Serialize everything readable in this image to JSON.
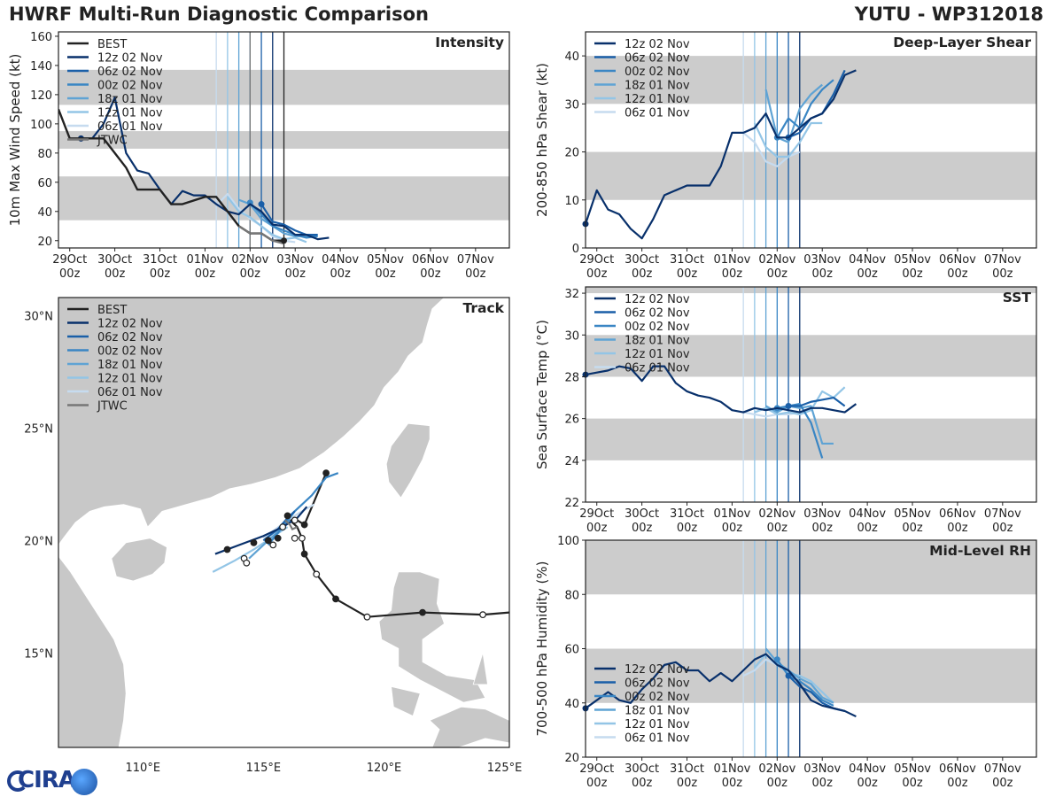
{
  "header": {
    "title": "HWRF Multi-Run Diagnostic Comparison",
    "storm": "YUTU - WP312018"
  },
  "logo": {
    "text": "CIRA"
  },
  "colors": {
    "best": "#222222",
    "jtwc": "#777777",
    "runs": [
      "#08306b",
      "#1a5fa8",
      "#3a86c4",
      "#5fa3d4",
      "#93c5e6",
      "#c6dbef"
    ],
    "band": "#cccccc",
    "land": "#c8c8c8"
  },
  "time_axis": {
    "ticks": [
      {
        "day": "29Oct",
        "hour": "00z"
      },
      {
        "day": "30Oct",
        "hour": "00z"
      },
      {
        "day": "31Oct",
        "hour": "00z"
      },
      {
        "day": "01Nov",
        "hour": "00z"
      },
      {
        "day": "02Nov",
        "hour": "00z"
      },
      {
        "day": "03Nov",
        "hour": "00z"
      },
      {
        "day": "04Nov",
        "hour": "00z"
      },
      {
        "day": "05Nov",
        "hour": "00z"
      },
      {
        "day": "06Nov",
        "hour": "00z"
      },
      {
        "day": "07Nov",
        "hour": "00z"
      }
    ],
    "init_day_offsets": [
      4.5,
      4.25,
      4.0,
      3.75,
      3.5,
      3.25
    ]
  },
  "legend_labels": {
    "best": "BEST",
    "jtwc": "JTWC",
    "runs": [
      "12z 02 Nov",
      "06z 02 Nov",
      "00z 02 Nov",
      "18z 01 Nov",
      "12z 01 Nov",
      "06z 01 Nov"
    ]
  },
  "chart_data": [
    {
      "id": "intensity",
      "type": "line",
      "title": "Intensity",
      "ylabel": "10m Max Wind Speed (kt)",
      "ylim": [
        15,
        163
      ],
      "yticks": [
        20,
        40,
        60,
        80,
        100,
        120,
        140,
        160
      ],
      "bands": [
        [
          34,
          64
        ],
        [
          83,
          95
        ],
        [
          113,
          137
        ]
      ],
      "xlim": [
        -0.25,
        9.75
      ],
      "best": {
        "x": [
          -0.25,
          0,
          0.25,
          0.5,
          0.75,
          1,
          1.25,
          1.5,
          2,
          2.25,
          2.5,
          3,
          3.25,
          3.5,
          3.75,
          4,
          4.25,
          4.5,
          4.75
        ],
        "y": [
          110,
          90,
          90,
          90,
          90,
          80,
          70,
          55,
          55,
          45,
          45,
          50,
          50,
          40,
          30,
          25,
          25,
          20,
          20
        ]
      },
      "jtwc": {
        "x": [
          3.75,
          4,
          4.25,
          4.5,
          4.75
        ],
        "y": [
          30,
          25,
          25,
          20,
          18
        ]
      },
      "runs": [
        {
          "x": [
            0.25,
            0.5,
            0.75,
            1,
            1.25,
            1.5,
            1.75,
            2,
            2.25,
            2.5,
            2.75,
            3,
            3.25,
            3.5,
            3.75,
            4,
            4.25,
            4.5,
            4.75,
            5,
            5.25,
            5.5,
            5.75
          ],
          "y": [
            90,
            90,
            100,
            118,
            80,
            68,
            66,
            55,
            45,
            54,
            51,
            51,
            45,
            40,
            38,
            45,
            40,
            31,
            30,
            24,
            24,
            21,
            22
          ]
        },
        {
          "x": [
            4.25,
            4.5,
            4.75,
            5,
            5.25,
            5.5
          ],
          "y": [
            45,
            33,
            31,
            27,
            24,
            24
          ]
        },
        {
          "x": [
            4.0,
            4.25,
            4.5,
            4.75,
            5,
            5.25,
            5.5
          ],
          "y": [
            46,
            38,
            30,
            27,
            24,
            22,
            23
          ]
        },
        {
          "x": [
            3.75,
            4,
            4.25,
            4.5,
            4.75,
            5,
            5.25,
            5.5
          ],
          "y": [
            48,
            45,
            35,
            30,
            25,
            23,
            23,
            24
          ]
        },
        {
          "x": [
            3.5,
            3.75,
            4,
            4.25,
            4.5,
            4.75,
            5,
            5.25
          ],
          "y": [
            50,
            40,
            36,
            30,
            24,
            21,
            22,
            19
          ]
        },
        {
          "x": [
            3.25,
            3.5,
            3.75,
            4,
            4.25,
            4.5,
            4.75,
            5
          ],
          "y": [
            44,
            52,
            42,
            35,
            30,
            23,
            20,
            19
          ]
        }
      ]
    },
    {
      "id": "shear",
      "type": "line",
      "title": "Deep-Layer Shear",
      "ylabel": "200-850 hPa Shear (kt)",
      "ylim": [
        0,
        45
      ],
      "yticks": [
        0,
        10,
        20,
        30,
        40
      ],
      "bands": [
        [
          10,
          20
        ],
        [
          30,
          40
        ]
      ],
      "xlim": [
        -0.25,
        9.75
      ],
      "runs": [
        {
          "x": [
            -0.25,
            0,
            0.25,
            0.5,
            0.75,
            1,
            1.25,
            1.5,
            1.75,
            2,
            2.25,
            2.5,
            2.75,
            3,
            3.25,
            3.5,
            3.75,
            4,
            4.25,
            4.5,
            4.75,
            5,
            5.25,
            5.5,
            5.75
          ],
          "y": [
            5,
            12,
            8,
            7,
            4,
            2,
            6,
            11,
            12,
            13,
            13,
            13,
            17,
            24,
            24,
            25,
            28,
            23,
            23,
            25,
            27,
            28,
            31,
            36,
            37
          ]
        },
        {
          "x": [
            4.25,
            4.5,
            4.75,
            5,
            5.25,
            5.5
          ],
          "y": [
            23,
            24,
            27,
            28,
            32,
            37
          ]
        },
        {
          "x": [
            4.0,
            4.25,
            4.5,
            4.75,
            5,
            5.25
          ],
          "y": [
            23,
            27,
            25,
            30,
            33,
            35
          ]
        },
        {
          "x": [
            3.75,
            4,
            4.25,
            4.5,
            4.75,
            5
          ],
          "y": [
            33,
            23,
            22,
            29,
            32,
            34
          ]
        },
        {
          "x": [
            3.5,
            3.75,
            4,
            4.25,
            4.5,
            4.75,
            5
          ],
          "y": [
            26,
            21,
            19,
            19,
            22,
            26,
            26
          ]
        },
        {
          "x": [
            3.25,
            3.5,
            3.75,
            4,
            4.25,
            4.5
          ],
          "y": [
            24,
            22,
            18,
            17,
            19,
            20
          ]
        }
      ]
    },
    {
      "id": "sst",
      "type": "line",
      "title": "SST",
      "ylabel": "Sea Surface Temp (°C)",
      "ylim": [
        22,
        32.3
      ],
      "yticks": [
        22,
        24,
        26,
        28,
        30,
        32
      ],
      "bands": [
        [
          24,
          26
        ],
        [
          28,
          30
        ],
        [
          32,
          32.3
        ]
      ],
      "xlim": [
        -0.25,
        9.75
      ],
      "runs": [
        {
          "x": [
            -0.25,
            0,
            0.25,
            0.5,
            0.75,
            1,
            1.25,
            1.5,
            1.75,
            2,
            2.25,
            2.5,
            2.75,
            3,
            3.25,
            3.5,
            3.75,
            4,
            4.25,
            4.5,
            4.75,
            5,
            5.25,
            5.5,
            5.75
          ],
          "y": [
            28.1,
            28.2,
            28.3,
            28.5,
            28.4,
            27.8,
            28.5,
            28.5,
            27.7,
            27.3,
            27.1,
            27.0,
            26.8,
            26.4,
            26.3,
            26.5,
            26.4,
            26.5,
            26.4,
            26.3,
            26.5,
            26.5,
            26.4,
            26.3,
            26.7
          ]
        },
        {
          "x": [
            4.25,
            4.5,
            4.75,
            5,
            5.25,
            5.5
          ],
          "y": [
            26.6,
            26.6,
            26.8,
            26.9,
            27.0,
            26.6
          ]
        },
        {
          "x": [
            4.0,
            4.25,
            4.5,
            4.75,
            5
          ],
          "y": [
            26.5,
            26.6,
            26.7,
            25.8,
            24.1
          ]
        },
        {
          "x": [
            3.75,
            4,
            4.25,
            4.5,
            4.75,
            5,
            5.25
          ],
          "y": [
            26.6,
            26.3,
            26.6,
            26.5,
            26.6,
            24.8,
            24.8
          ]
        },
        {
          "x": [
            3.5,
            3.75,
            4,
            4.25,
            4.5,
            4.75,
            5,
            5.25,
            5.5
          ],
          "y": [
            26.3,
            26.5,
            26.2,
            26.3,
            26.2,
            26.4,
            27.3,
            27.0,
            27.5
          ]
        },
        {
          "x": [
            3.25,
            3.5,
            3.75,
            4,
            4.25,
            4.5
          ],
          "y": [
            26.3,
            26.2,
            26.1,
            26.2,
            26.2,
            26.3
          ]
        }
      ]
    },
    {
      "id": "rh",
      "type": "line",
      "title": "Mid-Level RH",
      "ylabel": "700-500 hPa Humidity (%)",
      "ylim": [
        20,
        100
      ],
      "yticks": [
        20,
        40,
        60,
        80,
        100
      ],
      "bands": [
        [
          40,
          60
        ],
        [
          80,
          100
        ]
      ],
      "xlim": [
        -0.25,
        9.75
      ],
      "runs": [
        {
          "x": [
            -0.25,
            0,
            0.25,
            0.5,
            0.75,
            1,
            1.25,
            1.5,
            1.75,
            2,
            2.25,
            2.5,
            2.75,
            3,
            3.25,
            3.5,
            3.75,
            4,
            4.25,
            4.5,
            4.75,
            5,
            5.25,
            5.5,
            5.75
          ],
          "y": [
            38,
            41,
            44,
            41,
            40,
            45,
            49,
            54,
            55,
            52,
            52,
            48,
            51,
            48,
            52,
            56,
            58,
            54,
            52,
            47,
            41,
            39,
            38,
            37,
            35
          ]
        },
        {
          "x": [
            4.25,
            4.5,
            4.75,
            5,
            5.25,
            5.5
          ],
          "y": [
            50,
            46,
            44,
            40,
            38,
            37
          ]
        },
        {
          "x": [
            4.0,
            4.25,
            4.5,
            4.75,
            5,
            5.25
          ],
          "y": [
            56,
            50,
            48,
            45,
            41,
            39
          ]
        },
        {
          "x": [
            3.75,
            4,
            4.25,
            4.5,
            4.75,
            5,
            5.25
          ],
          "y": [
            60,
            55,
            52,
            49,
            47,
            42,
            40
          ]
        },
        {
          "x": [
            3.5,
            3.75,
            4,
            4.25,
            4.5,
            4.75,
            5,
            5.25
          ],
          "y": [
            53,
            58,
            54,
            51,
            50,
            48,
            44,
            40
          ]
        },
        {
          "x": [
            3.25,
            3.5,
            3.75,
            4,
            4.25,
            4.5
          ],
          "y": [
            50,
            52,
            56,
            54,
            51,
            49
          ]
        }
      ]
    },
    {
      "id": "track",
      "type": "scatter",
      "title": "Track",
      "xlim": [
        106.5,
        125.2
      ],
      "ylim": [
        10.8,
        30.8
      ],
      "xticks": [
        110,
        115,
        120,
        125
      ],
      "xtick_labels": [
        "110°E",
        "115°E",
        "120°E",
        "125°E"
      ],
      "yticks": [
        15,
        20,
        25,
        30
      ],
      "ytick_labels": [
        "15°N",
        "20°N",
        "25°N",
        "30°N"
      ],
      "best": {
        "lon": [
          125.2,
          124.1,
          121.6,
          119.3,
          118.0,
          117.2,
          116.7,
          116.6,
          116.4,
          116.2,
          116.0,
          116.1,
          116.7,
          117.6
        ],
        "lat": [
          16.8,
          16.7,
          16.8,
          16.6,
          17.4,
          18.5,
          19.4,
          20.1,
          20.6,
          20.8,
          21.1,
          21.1,
          20.7,
          23.0
        ]
      },
      "best_points": [
        {
          "lon": 124.1,
          "lat": 16.7,
          "filled": false
        },
        {
          "lon": 121.6,
          "lat": 16.8,
          "filled": true
        },
        {
          "lon": 119.3,
          "lat": 16.6,
          "filled": false
        },
        {
          "lon": 118.0,
          "lat": 17.4,
          "filled": true
        },
        {
          "lon": 117.2,
          "lat": 18.5,
          "filled": false
        },
        {
          "lon": 116.7,
          "lat": 19.4,
          "filled": true
        },
        {
          "lon": 116.6,
          "lat": 20.1,
          "filled": false
        },
        {
          "lon": 116.7,
          "lat": 20.7,
          "filled": true
        },
        {
          "lon": 116.0,
          "lat": 21.1,
          "filled": true
        },
        {
          "lon": 117.6,
          "lat": 23.0,
          "filled": true
        },
        {
          "lon": 115.6,
          "lat": 20.1,
          "filled": true
        },
        {
          "lon": 115.2,
          "lat": 20.0,
          "filled": true
        },
        {
          "lon": 114.6,
          "lat": 19.9,
          "filled": true
        },
        {
          "lon": 113.5,
          "lat": 19.6,
          "filled": true
        },
        {
          "lon": 114.2,
          "lat": 19.2,
          "filled": false
        },
        {
          "lon": 114.3,
          "lat": 19.0,
          "filled": false
        },
        {
          "lon": 115.4,
          "lat": 19.8,
          "filled": false
        },
        {
          "lon": 115.8,
          "lat": 20.6,
          "filled": false
        },
        {
          "lon": 116.3,
          "lat": 20.1,
          "filled": false
        },
        {
          "lon": 116.3,
          "lat": 20.9,
          "filled": false
        }
      ],
      "jtwc": {
        "lon": [
          116.4,
          116.2,
          116.1,
          115.9
        ],
        "lat": [
          20.6,
          20.5,
          20.7,
          20.9
        ]
      },
      "runs": [
        {
          "lon": [
            113.0,
            114.0,
            115.0,
            115.8,
            116.4,
            116.8
          ],
          "lat": [
            19.4,
            19.8,
            20.2,
            20.6,
            21.0,
            21.5
          ]
        },
        {
          "lon": [
            115.0,
            115.6,
            116.0,
            116.3
          ],
          "lat": [
            20.0,
            20.5,
            21.0,
            21.3
          ]
        },
        {
          "lon": [
            115.2,
            115.8,
            116.3,
            117.0,
            117.6,
            118.1
          ],
          "lat": [
            19.8,
            20.6,
            21.3,
            22.0,
            22.8,
            23.0
          ]
        },
        {
          "lon": [
            114.4,
            115.0,
            115.6,
            116.1
          ],
          "lat": [
            19.2,
            19.8,
            20.4,
            20.9
          ]
        },
        {
          "lon": [
            112.9,
            113.8,
            114.6,
            115.3,
            116.0
          ],
          "lat": [
            18.6,
            19.1,
            19.6,
            20.1,
            20.6
          ]
        },
        {
          "lon": [
            115.0,
            115.5,
            116.0,
            116.6,
            117.1
          ],
          "lat": [
            20.1,
            20.5,
            20.9,
            21.3,
            21.6
          ]
        }
      ]
    }
  ]
}
